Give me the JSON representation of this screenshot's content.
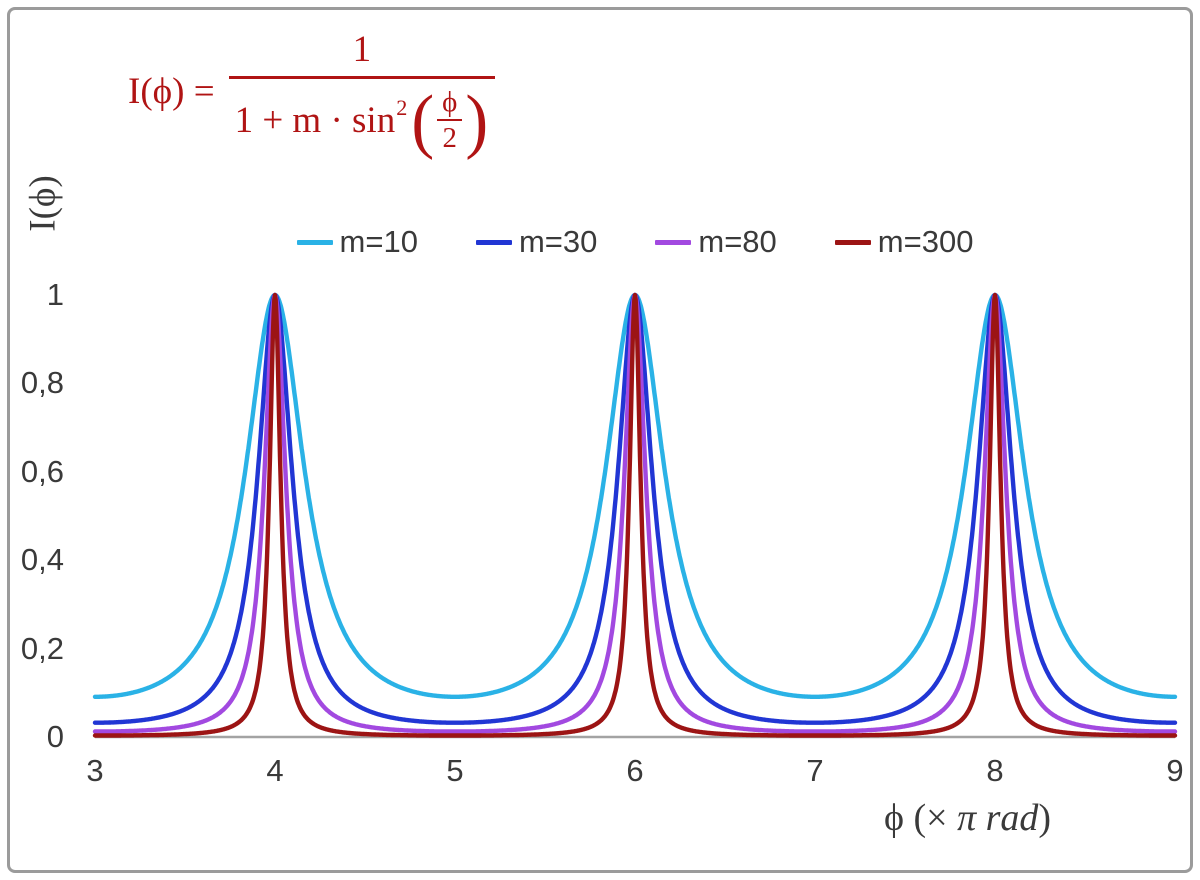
{
  "chart": {
    "formula": {
      "lhs": "I(ϕ) =",
      "numerator": "1",
      "den_text": "1 + m · sin",
      "den_sup": "2",
      "inner_num": "ϕ",
      "inner_den": "2"
    },
    "ylabel": "I(ϕ)",
    "xlabel": {
      "pre": "ϕ  (× ",
      "italic": "π rad",
      "post": ")"
    }
  },
  "colors": {
    "formula": "#b01414",
    "axis_line": "#a3a3a3",
    "tick_text": "#3a3a3a",
    "frame_border": "#9b9b9b"
  },
  "chart_data": {
    "type": "line",
    "formula": "I(ϕ) = 1 / (1 + m·sin²(ϕ/2))",
    "xlabel": "ϕ (× π rad)",
    "ylabel": "I(ϕ)",
    "x_unit": "pi rad",
    "x_range": [
      3,
      9
    ],
    "y_range": [
      0,
      1
    ],
    "x_ticks": [
      3,
      4,
      5,
      6,
      7,
      8,
      9
    ],
    "y_ticks": [
      {
        "value": 0,
        "label": "0"
      },
      {
        "value": 0.2,
        "label": "0,2"
      },
      {
        "value": 0.4,
        "label": "0,4"
      },
      {
        "value": 0.6,
        "label": "0,6"
      },
      {
        "value": 0.8,
        "label": "0,8"
      },
      {
        "value": 1,
        "label": "1"
      }
    ],
    "peaks_at_x": [
      4,
      6,
      8
    ],
    "peak_value": 1,
    "grid": false,
    "legend_position": "top-center",
    "series": [
      {
        "name": "m=10",
        "m": 10,
        "color": "#2ab2e6"
      },
      {
        "name": "m=30",
        "m": 30,
        "color": "#2136d4"
      },
      {
        "name": "m=80",
        "m": 80,
        "color": "#a249e0"
      },
      {
        "name": "m=300",
        "m": 300,
        "color": "#9c1414"
      }
    ]
  }
}
